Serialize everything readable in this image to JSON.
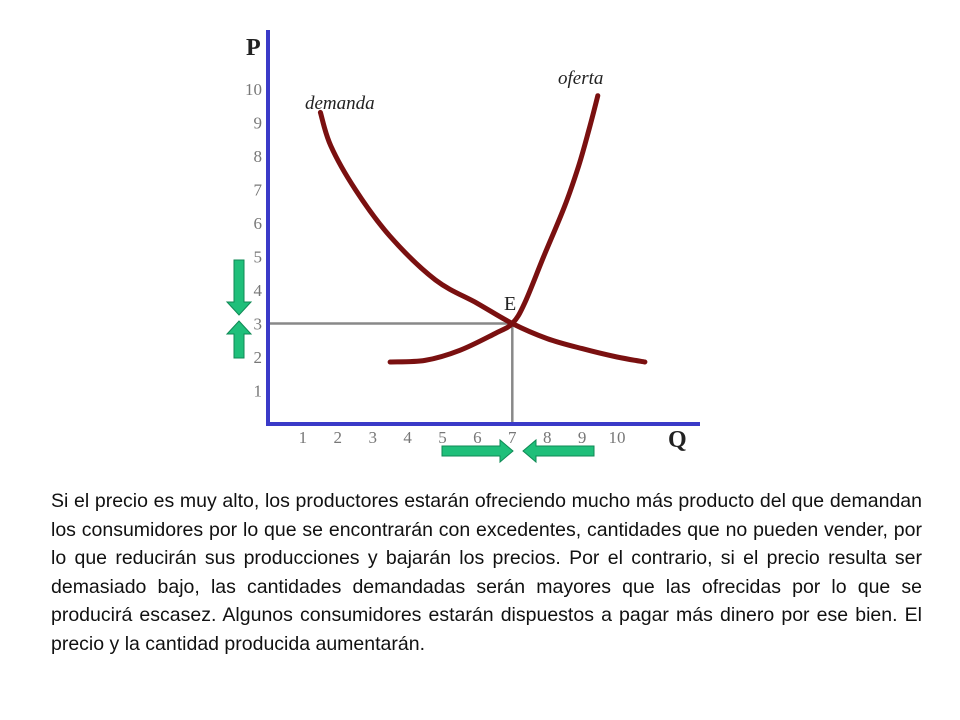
{
  "chart_data": {
    "type": "line",
    "x_axis_label": "Q",
    "y_axis_label": "P",
    "x_ticks": [
      "1",
      "2",
      "3",
      "4",
      "5",
      "6",
      "7",
      "8",
      "9",
      "10"
    ],
    "y_ticks": [
      "1",
      "2",
      "3",
      "4",
      "5",
      "6",
      "7",
      "8",
      "9",
      "10"
    ],
    "xlim": [
      0,
      11
    ],
    "ylim": [
      0,
      10.6
    ],
    "series": [
      {
        "name": "demanda",
        "color": "#7a1010",
        "points": [
          [
            1.5,
            9.3
          ],
          [
            1.8,
            8.3
          ],
          [
            2.5,
            7.0
          ],
          [
            3.5,
            5.6
          ],
          [
            4.8,
            4.3
          ],
          [
            6.0,
            3.6
          ],
          [
            7.0,
            3.0
          ],
          [
            8.0,
            2.55
          ],
          [
            9.0,
            2.25
          ],
          [
            10.0,
            2.0
          ],
          [
            10.8,
            1.85
          ]
        ]
      },
      {
        "name": "oferta",
        "color": "#7a1010",
        "points": [
          [
            3.5,
            1.85
          ],
          [
            4.5,
            1.9
          ],
          [
            5.5,
            2.2
          ],
          [
            6.5,
            2.7
          ],
          [
            7.0,
            3.0
          ],
          [
            7.35,
            3.6
          ],
          [
            7.9,
            5.0
          ],
          [
            8.5,
            6.5
          ],
          [
            8.9,
            7.7
          ],
          [
            9.2,
            8.8
          ],
          [
            9.45,
            9.8
          ]
        ]
      }
    ],
    "equilibrium": {
      "label": "E",
      "x": 7,
      "y": 3
    },
    "guide_color": "#888888",
    "axis_color": "#3a3ac8",
    "arrow_color": "#1fbf7a",
    "arrows": [
      {
        "axis": "y",
        "direction": "down"
      },
      {
        "axis": "y",
        "direction": "up"
      },
      {
        "axis": "x",
        "direction": "right"
      },
      {
        "axis": "x",
        "direction": "left"
      }
    ]
  },
  "body_text": "Si el precio es muy alto, los productores estarán ofreciendo mucho más producto del que demandan los consumidores por lo que se encontrarán con excedentes, cantidades que no pueden vender, por lo que reducirán sus producciones y bajarán los precios. Por el contrario, si el precio resulta ser demasiado bajo, las cantidades demandadas serán mayores que las ofrecidas por lo que se producirá escasez. Algunos consumidores estarán dispuestos a pagar más dinero por ese bien. El precio y la cantidad producida aumentarán."
}
